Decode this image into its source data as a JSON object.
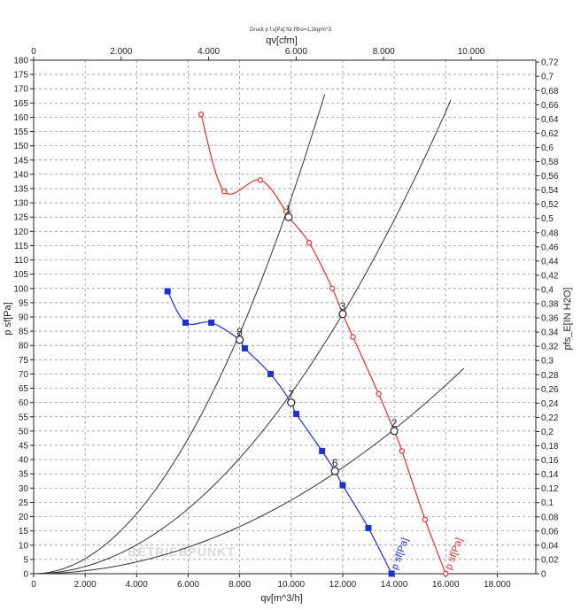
{
  "chart_data": {
    "type": "line",
    "title": "Druck p f.s[Pa] für Rho=1,2kg/m^3",
    "xlabel": "qv[m^3/h]",
    "x2label": "qv[cfm]",
    "ylabel": "p sf[Pa]",
    "y2label": "pfs_E[IN H2O]",
    "xlim": [
      0,
      19500
    ],
    "ylim": [
      0,
      180
    ],
    "x2lim": [
      0,
      11477
    ],
    "y2lim": [
      0,
      0.7227
    ],
    "grid": true,
    "x_ticks": [
      0,
      2000,
      4000,
      6000,
      8000,
      10000,
      12000,
      14000,
      16000,
      18000
    ],
    "x_tick_labels": [
      "0",
      "2.000",
      "4.000",
      "6.000",
      "8.000",
      "10.000",
      "12.000",
      "14.000",
      "16.000",
      "18.000"
    ],
    "x2_ticks": [
      0,
      2000,
      4000,
      6000,
      8000,
      10000
    ],
    "x2_tick_labels": [
      "0",
      "2.000",
      "4.000",
      "6.000",
      "8.000",
      "10.000"
    ],
    "y_ticks": [
      0,
      5,
      10,
      15,
      20,
      25,
      30,
      35,
      40,
      45,
      50,
      55,
      60,
      65,
      70,
      75,
      80,
      85,
      90,
      95,
      100,
      105,
      110,
      115,
      120,
      125,
      130,
      135,
      140,
      145,
      150,
      155,
      160,
      165,
      170,
      175,
      180
    ],
    "y2_ticks": [
      0,
      0.02,
      0.04,
      0.06,
      0.08,
      0.1,
      0.12,
      0.14,
      0.16,
      0.18,
      0.2,
      0.22,
      0.24,
      0.26,
      0.28,
      0.3,
      0.32,
      0.34,
      0.36,
      0.38,
      0.4,
      0.42,
      0.44,
      0.46,
      0.48,
      0.5,
      0.52,
      0.54,
      0.56,
      0.58,
      0.6,
      0.62,
      0.64,
      0.66,
      0.68,
      0.7,
      0.72
    ],
    "y2_tick_labels": [
      "0",
      "0,02",
      "0,04",
      "0,06",
      "0,08",
      "0,1",
      "0,12",
      "0,14",
      "0,16",
      "0,18",
      "0,2",
      "0,22",
      "0,24",
      "0,26",
      "0,28",
      "0,3",
      "0,32",
      "0,34",
      "0,36",
      "0,38",
      "0,4",
      "0,42",
      "0,44",
      "0,46",
      "0,48",
      "0,5",
      "0,52",
      "0,54",
      "0,56",
      "0,58",
      "0,6",
      "0,62",
      "0,64",
      "0,66",
      "0,68",
      "0,7",
      "0,72"
    ],
    "series": [
      {
        "name": "p sf[Pa]",
        "color": "#e03030",
        "marker": "circle",
        "x": [
          6500,
          7400,
          8800,
          9800,
          9900,
          10700,
          11600,
          12000,
          12400,
          13400,
          14000,
          14300,
          15200,
          16000
        ],
        "y": [
          161,
          134,
          138,
          127,
          125,
          116,
          100,
          91,
          83,
          63,
          50,
          43,
          19,
          0
        ]
      },
      {
        "name": "p sf[Pa]",
        "color": "#2030d0",
        "marker": "square",
        "x": [
          5200,
          5900,
          6900,
          8000,
          8200,
          9200,
          10000,
          10200,
          11200,
          11700,
          12000,
          13000,
          13900
        ],
        "y": [
          99,
          88,
          88,
          82,
          79,
          70,
          60,
          56,
          43,
          36,
          31,
          16,
          0
        ]
      }
    ],
    "system_curves": [
      {
        "x_end": 11300,
        "y_end": 168
      },
      {
        "x_end": 16200,
        "y_end": 166
      },
      {
        "x_end": 16700,
        "y_end": 72
      }
    ],
    "operating_points": [
      {
        "label": "1",
        "x": 9900,
        "y": 125
      },
      {
        "label": "2",
        "x": 14000,
        "y": 50
      },
      {
        "label": "3",
        "x": 12000,
        "y": 91
      },
      {
        "label": "6",
        "x": 11700,
        "y": 36
      },
      {
        "label": "7",
        "x": 10000,
        "y": 60
      },
      {
        "label": "8",
        "x": 8000,
        "y": 82
      }
    ],
    "watermark": "BETRIEBPUNKT"
  }
}
